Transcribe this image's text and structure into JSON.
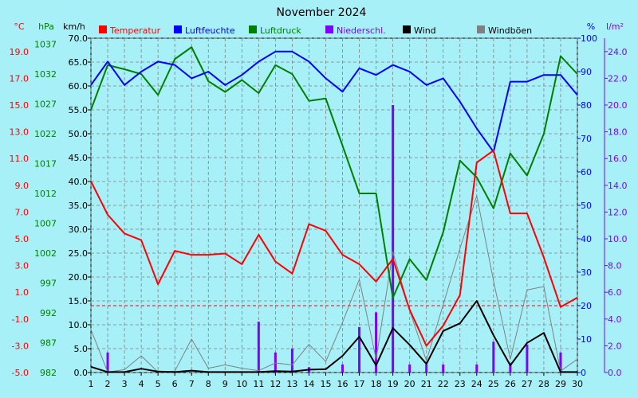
{
  "chart_data": {
    "type": "line",
    "title": "November 2024",
    "x": [
      1,
      2,
      3,
      4,
      5,
      6,
      7,
      8,
      9,
      10,
      11,
      12,
      13,
      14,
      15,
      16,
      17,
      18,
      19,
      20,
      21,
      22,
      23,
      24,
      25,
      26,
      27,
      28,
      29,
      30
    ],
    "xlim": [
      1,
      30
    ],
    "axes": {
      "temperature": {
        "unit": "°C",
        "min": -5.0,
        "max": 20.0,
        "ticks": [
          "19.0",
          "17.0",
          "15.0",
          "13.0",
          "11.0",
          "9.0",
          "7.0",
          "5.0",
          "3.0",
          "1.0",
          "-1.0",
          "-3.0",
          "-5.0"
        ],
        "color": "#ff0000"
      },
      "pressure": {
        "unit": "hPa",
        "min": 982,
        "max": 1038,
        "ticks": [
          "1037",
          "1032",
          "1027",
          "1022",
          "1017",
          "1012",
          "1007",
          "1002",
          "997",
          "992",
          "987",
          "982"
        ],
        "color": "#008000"
      },
      "wind": {
        "unit": "km/h",
        "min": 0.0,
        "max": 70.0,
        "ticks": [
          "70.0",
          "65.0",
          "60.0",
          "55.0",
          "50.0",
          "45.0",
          "40.0",
          "35.0",
          "30.0",
          "25.0",
          "20.0",
          "15.0",
          "10.0",
          "5.0",
          "0.0"
        ],
        "color": "#000000"
      },
      "humidity": {
        "unit": "%",
        "min": 0,
        "max": 100,
        "ticks": [
          "100",
          "90",
          "80",
          "70",
          "60",
          "50",
          "40",
          "30",
          "20",
          "10",
          "0"
        ],
        "color": "#0000ff"
      },
      "precipitation": {
        "unit": "l/m²",
        "min": 0.0,
        "max": 25.0,
        "ticks": [
          "24.0",
          "22.0",
          "20.0",
          "18.0",
          "16.0",
          "14.0",
          "12.0",
          "10.0",
          "8.0",
          "6.0",
          "4.0",
          "2.0",
          "0.0"
        ],
        "color": "#8000ff"
      }
    },
    "series": [
      {
        "name": "Temperatur",
        "axis": "temperature",
        "color": "#ff0000",
        "style": "line",
        "values": [
          9.3,
          6.8,
          5.4,
          4.9,
          1.6,
          4.1,
          3.8,
          3.8,
          3.9,
          3.1,
          5.3,
          3.3,
          2.4,
          6.1,
          5.6,
          3.8,
          3.1,
          1.8,
          3.5,
          -0.3,
          -3.0,
          -1.5,
          0.8,
          10.7,
          11.6,
          6.9,
          6.9,
          3.6,
          -0.1,
          0.6
        ]
      },
      {
        "name": "Luftfeuchte",
        "axis": "humidity",
        "color": "#0000ff",
        "style": "line",
        "values": [
          86,
          93,
          86,
          90,
          93,
          92,
          88,
          90,
          86,
          89,
          93,
          96,
          96,
          93,
          88,
          84,
          91,
          89,
          92,
          90,
          86,
          88,
          81,
          73,
          66,
          87,
          87,
          89,
          89,
          83
        ]
      },
      {
        "name": "Luftdruck",
        "axis": "pressure",
        "color": "#008000",
        "style": "line",
        "values": [
          1026.0,
          1033.5,
          1032.8,
          1032.0,
          1028.5,
          1034.5,
          1036.5,
          1030.8,
          1029.0,
          1031.0,
          1028.8,
          1033.5,
          1032.0,
          1027.5,
          1027.9,
          1020.0,
          1012.0,
          1012.0,
          994.5,
          1001.0,
          997.5,
          1005.5,
          1017.5,
          1014.7,
          1009.5,
          1018.7,
          1015.0,
          1022.0,
          1035.0,
          1032.0
        ]
      },
      {
        "name": "Niederschl.",
        "axis": "precipitation",
        "color": "#8000ff",
        "style": "bar",
        "values": [
          0,
          1.5,
          0,
          0,
          0,
          0,
          0,
          0,
          0,
          0,
          3.8,
          1.5,
          1.8,
          0.4,
          0,
          0.6,
          3.4,
          4.5,
          20.0,
          0.6,
          0.6,
          0.6,
          0,
          0.6,
          2.3,
          0.6,
          2.1,
          0,
          1.5,
          0
        ]
      },
      {
        "name": "Wind",
        "axis": "wind",
        "color": "#000000",
        "style": "line",
        "values": [
          1.2,
          0.1,
          0.1,
          0.8,
          0.2,
          0.1,
          0.4,
          0.1,
          0.1,
          0.1,
          0.1,
          0.3,
          0.2,
          0.6,
          0.7,
          3.5,
          7.5,
          1.5,
          9.3,
          5.8,
          1.8,
          8.7,
          10.3,
          15.0,
          7.8,
          1.5,
          6.2,
          8.3,
          0.1,
          0.1
        ]
      },
      {
        "name": "Windböen",
        "axis": "wind",
        "color": "#808080",
        "style": "line",
        "values": [
          9.0,
          0.1,
          0.6,
          3.5,
          0.1,
          0.3,
          7.0,
          0.9,
          1.6,
          0.9,
          0.4,
          2.0,
          1.6,
          5.9,
          2.3,
          10.5,
          19.5,
          2.8,
          25.3,
          13.0,
          2.5,
          14.2,
          26.0,
          37.0,
          19.2,
          2.8,
          17.3,
          18.0,
          0.3,
          2.8
        ]
      }
    ],
    "reference_line": {
      "axis": "temperature",
      "value": 0,
      "style": "dashed",
      "color": "#ff0000"
    },
    "legend": "top",
    "grid": true
  }
}
